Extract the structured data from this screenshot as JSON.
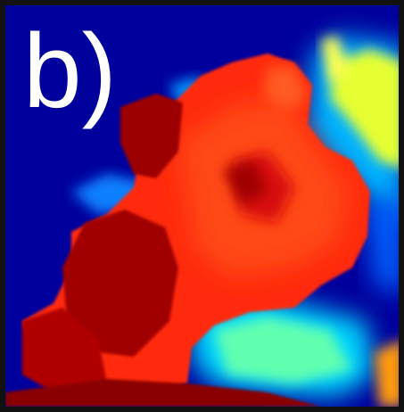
{
  "label": "b)"
}
